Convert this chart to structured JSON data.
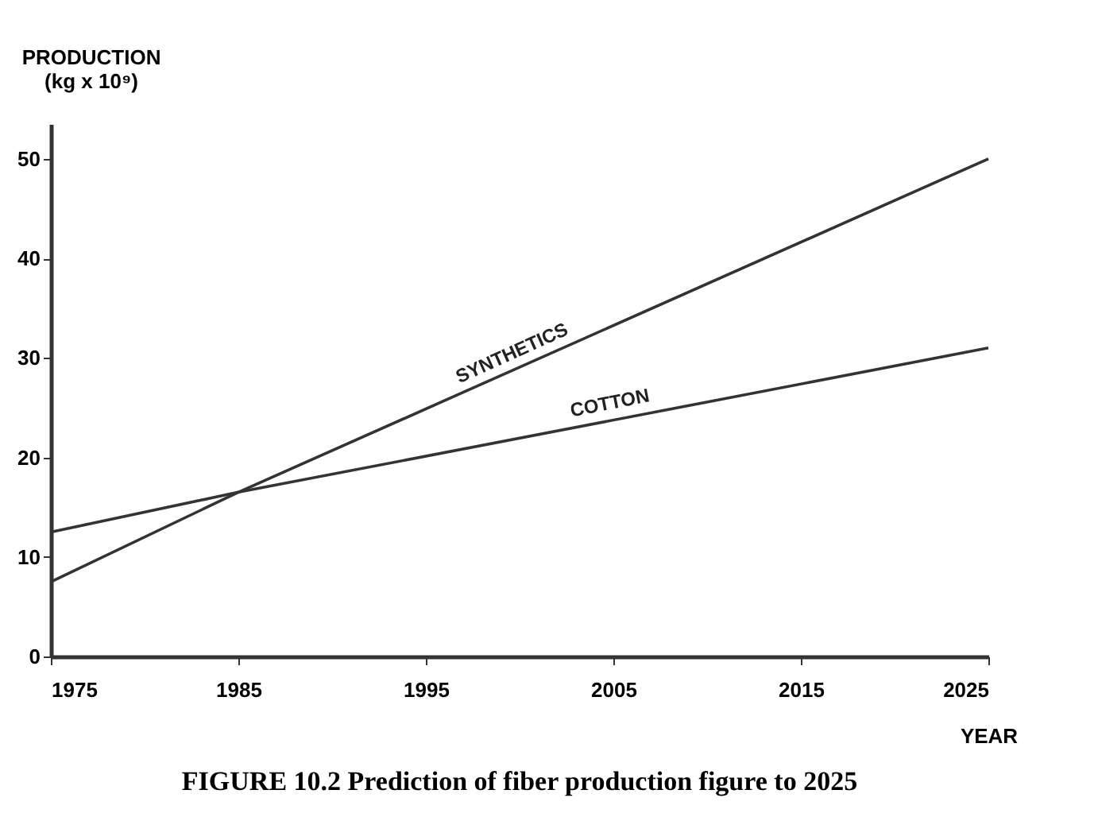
{
  "chart_data": {
    "type": "line",
    "title": "FIGURE 10.2 Prediction of fiber production figure to 2025",
    "xlabel": "YEAR",
    "ylabel": "PRODUCTION (kg x 10⁹)",
    "x": [
      1975,
      1985,
      2025
    ],
    "series": [
      {
        "name": "SYNTHETICS",
        "color": "#333333",
        "values": [
          7.5,
          16.5,
          50
        ]
      },
      {
        "name": "COTTON",
        "color": "#333333",
        "values": [
          12.5,
          16.5,
          31
        ]
      }
    ],
    "xlim": [
      1975,
      2025
    ],
    "xticks": [
      1975,
      1985,
      1995,
      2005,
      2015,
      2025
    ],
    "ylim": [
      0,
      53.5
    ],
    "yticks": [
      0,
      10,
      20,
      30,
      40,
      50
    ],
    "grid": false,
    "legend": false,
    "marker": "none",
    "line_style": "solid"
  }
}
